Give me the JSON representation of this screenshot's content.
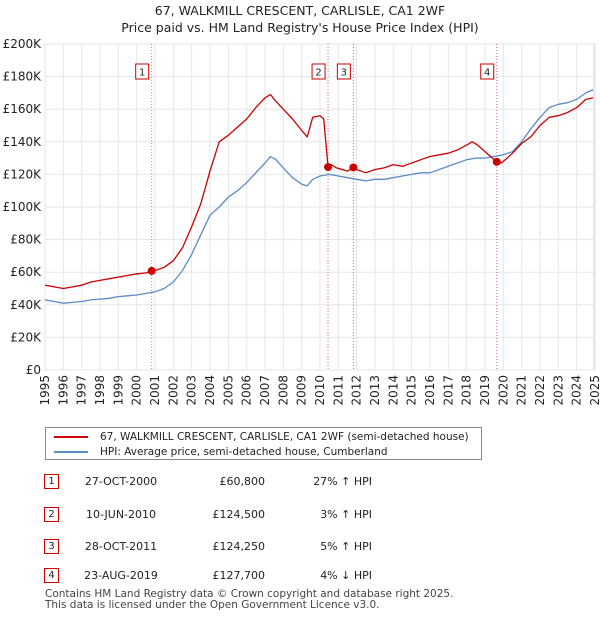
{
  "title_line1": "67, WALKMILL CRESCENT, CARLISLE, CA1 2WF",
  "title_line2": "Price paid vs. HM Land Registry's House Price Index (HPI)",
  "colors": {
    "property": "#cc0000",
    "hpi": "#5b8bc9",
    "band": "#dce6f5",
    "marker_line": "#e06080"
  },
  "chart_data": {
    "type": "line",
    "title": "67, WALKMILL CRESCENT, CARLISLE, CA1 2WF — Price paid vs. HM Land Registry's House Price Index (HPI)",
    "xlabel": "",
    "ylabel": "",
    "xlim": [
      1995,
      2025
    ],
    "ylim": [
      0,
      200000
    ],
    "y_ticks": [
      {
        "value": 0,
        "label": "£0"
      },
      {
        "value": 20000,
        "label": "£20K"
      },
      {
        "value": 40000,
        "label": "£40K"
      },
      {
        "value": 60000,
        "label": "£60K"
      },
      {
        "value": 80000,
        "label": "£80K"
      },
      {
        "value": 100000,
        "label": "£100K"
      },
      {
        "value": 120000,
        "label": "£120K"
      },
      {
        "value": 140000,
        "label": "£140K"
      },
      {
        "value": 160000,
        "label": "£160K"
      },
      {
        "value": 180000,
        "label": "£180K"
      },
      {
        "value": 200000,
        "label": "£200K"
      }
    ],
    "x_ticks": [
      "1995",
      "1996",
      "1997",
      "1998",
      "1999",
      "2000",
      "2001",
      "2002",
      "2003",
      "2004",
      "2005",
      "2006",
      "2007",
      "2008",
      "2009",
      "2010",
      "2011",
      "2012",
      "2013",
      "2014",
      "2015",
      "2016",
      "2017",
      "2018",
      "2019",
      "2020",
      "2021",
      "2022",
      "2023",
      "2024",
      "2025"
    ],
    "grid": true,
    "series": [
      {
        "name": "67, WALKMILL CRESCENT, CARLISLE, CA1 2WF (semi-detached house)",
        "color": "#cc0000",
        "x": [
          1995.0,
          1995.5,
          1996.0,
          1996.5,
          1997.0,
          1997.5,
          1998.0,
          1998.5,
          1999.0,
          1999.5,
          2000.0,
          2000.5,
          2000.82,
          2001.0,
          2001.5,
          2002.0,
          2002.5,
          2003.0,
          2003.5,
          2004.0,
          2004.5,
          2005.0,
          2005.5,
          2006.0,
          2006.5,
          2007.0,
          2007.3,
          2007.5,
          2008.0,
          2008.5,
          2009.0,
          2009.3,
          2009.6,
          2010.0,
          2010.2,
          2010.44,
          2010.6,
          2010.9,
          2011.2,
          2011.5,
          2011.82,
          2012.0,
          2012.5,
          2013.0,
          2013.5,
          2014.0,
          2014.5,
          2015.0,
          2015.5,
          2016.0,
          2016.5,
          2017.0,
          2017.5,
          2018.0,
          2018.3,
          2018.6,
          2019.0,
          2019.3,
          2019.64,
          2019.9,
          2020.2,
          2020.5,
          2021.0,
          2021.5,
          2022.0,
          2022.5,
          2023.0,
          2023.5,
          2024.0,
          2024.5,
          2024.9
        ],
        "values": [
          52000,
          51000,
          50000,
          51000,
          52000,
          54000,
          55000,
          56000,
          57000,
          58000,
          59000,
          59500,
          60800,
          61000,
          63000,
          67000,
          75000,
          88000,
          102000,
          122000,
          140000,
          144000,
          149000,
          154000,
          161000,
          167000,
          169000,
          166000,
          160000,
          154000,
          147000,
          143000,
          155000,
          156000,
          154000,
          124500,
          126000,
          124000,
          123000,
          122000,
          124250,
          123000,
          121000,
          123000,
          124000,
          126000,
          125000,
          127000,
          129000,
          131000,
          132000,
          133000,
          135000,
          138000,
          140000,
          138000,
          134000,
          131000,
          127700,
          127000,
          130000,
          133000,
          139000,
          143000,
          150000,
          155000,
          156000,
          158000,
          161000,
          166000,
          167000
        ]
      },
      {
        "name": "HPI: Average price, semi-detached house, Cumberland",
        "color": "#5b8bc9",
        "x": [
          1995.0,
          1995.5,
          1996.0,
          1996.5,
          1997.0,
          1997.5,
          1998.0,
          1998.5,
          1999.0,
          1999.5,
          2000.0,
          2000.5,
          2001.0,
          2001.5,
          2002.0,
          2002.5,
          2003.0,
          2003.5,
          2004.0,
          2004.5,
          2005.0,
          2005.5,
          2006.0,
          2006.5,
          2007.0,
          2007.3,
          2007.6,
          2008.0,
          2008.5,
          2009.0,
          2009.3,
          2009.6,
          2010.0,
          2010.5,
          2011.0,
          2011.5,
          2012.0,
          2012.5,
          2013.0,
          2013.5,
          2014.0,
          2014.5,
          2015.0,
          2015.5,
          2016.0,
          2016.5,
          2017.0,
          2017.5,
          2018.0,
          2018.5,
          2019.0,
          2019.5,
          2020.0,
          2020.5,
          2021.0,
          2021.5,
          2022.0,
          2022.5,
          2023.0,
          2023.5,
          2024.0,
          2024.5,
          2024.9
        ],
        "values": [
          43000,
          42000,
          41000,
          41500,
          42000,
          43000,
          43500,
          44000,
          45000,
          45500,
          46000,
          47000,
          48000,
          50000,
          54000,
          61000,
          71000,
          83000,
          95000,
          100000,
          106000,
          110000,
          115000,
          121000,
          127000,
          131000,
          129000,
          124000,
          118000,
          114000,
          113000,
          117000,
          119000,
          120000,
          119000,
          118000,
          117000,
          116000,
          117000,
          117000,
          118000,
          119000,
          120000,
          121000,
          121000,
          123000,
          125000,
          127000,
          129000,
          130000,
          130000,
          131000,
          132000,
          134000,
          140000,
          148000,
          155000,
          161000,
          163000,
          164000,
          166000,
          170000,
          172000
        ]
      }
    ],
    "annotations": [
      {
        "label": "1",
        "x": 2000.82,
        "value": 60800
      },
      {
        "label": "2",
        "x": 2010.44,
        "value": 124500
      },
      {
        "label": "3",
        "x": 2011.82,
        "value": 124250
      },
      {
        "label": "4",
        "x": 2019.64,
        "value": 127700
      }
    ],
    "shaded_band": [
      2024.9,
      2025.0
    ]
  },
  "legend": {
    "property_label": "67, WALKMILL CRESCENT, CARLISLE, CA1 2WF (semi-detached house)",
    "hpi_label": "HPI: Average price, semi-detached house, Cumberland"
  },
  "transactions": [
    {
      "num": "1",
      "date": "27-OCT-2000",
      "price": "£60,800",
      "hpi": "27% ↑ HPI"
    },
    {
      "num": "2",
      "date": "10-JUN-2010",
      "price": "£124,500",
      "hpi": "3% ↑ HPI"
    },
    {
      "num": "3",
      "date": "28-OCT-2011",
      "price": "£124,250",
      "hpi": "5% ↑ HPI"
    },
    {
      "num": "4",
      "date": "23-AUG-2019",
      "price": "£127,700",
      "hpi": "4% ↓ HPI"
    }
  ],
  "footer_line1": "Contains HM Land Registry data © Crown copyright and database right 2025.",
  "footer_line2": "This data is licensed under the Open Government Licence v3.0."
}
